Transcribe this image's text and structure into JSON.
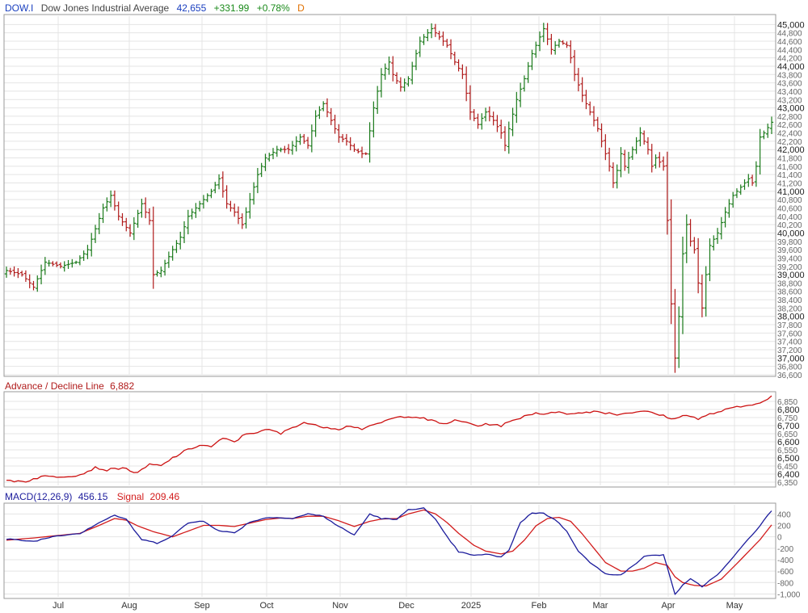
{
  "header": {
    "symbol": "DOW.I",
    "name": "Dow Jones Industrial Average",
    "last": "42,655",
    "change": "+331.99",
    "change_pct": "+0.78%",
    "period": "D"
  },
  "adl": {
    "label": "Advance / Decline Line",
    "value": "6,882"
  },
  "macd": {
    "label": "MACD(12,26,9)",
    "value": "456.15",
    "signal_label": "Signal",
    "signal_value": "209.46"
  },
  "colors": {
    "up": "#1a7a1a",
    "down": "#b01a1a",
    "adl_line": "#cc1111",
    "macd_line": "#1c1c9c",
    "signal_line": "#d21c1c",
    "symbol": "#1a3fbf",
    "last": "#1a3fbf",
    "change": "#1a8a1a",
    "period": "#e07000"
  },
  "chart_data": [
    {
      "type": "ohlc",
      "ylim": [
        36600,
        45200
      ],
      "y_ticks": [
        45000,
        44800,
        44600,
        44400,
        44200,
        44000,
        43800,
        43600,
        43400,
        43200,
        43000,
        42800,
        42600,
        42400,
        42200,
        42000,
        41800,
        41600,
        41400,
        41200,
        41000,
        40800,
        40600,
        40400,
        40200,
        40000,
        39800,
        39600,
        39400,
        39200,
        39000,
        38800,
        38600,
        38400,
        38200,
        38000,
        37800,
        37600,
        37400,
        37200,
        37000,
        36800,
        36600
      ],
      "y_tick_labels": [
        "45,000",
        "44,800",
        "44,600",
        "44,400",
        "44,200",
        "44,000",
        "43,800",
        "43,600",
        "43,400",
        "43,200",
        "43,000",
        "42,800",
        "42,600",
        "42,400",
        "42,200",
        "42,000",
        "41,800",
        "41,600",
        "41,400",
        "41,200",
        "41,000",
        "40,800",
        "40,600",
        "40,400",
        "40,200",
        "40,000",
        "39,800",
        "39,600",
        "39,400",
        "39,200",
        "39,000",
        "38,800",
        "38,600",
        "38,400",
        "38,200",
        "38,000",
        "37,800",
        "37,600",
        "37,400",
        "37,200",
        "37,000",
        "36,800",
        "36,600"
      ],
      "x_labels": [
        "Jul",
        "Aug",
        "Sep",
        "Oct",
        "Nov",
        "Dec",
        "2025",
        "Feb",
        "Mar",
        "Apr",
        "May"
      ],
      "anchors": [
        [
          0,
          39100
        ],
        [
          4,
          39000
        ],
        [
          7,
          38700
        ],
        [
          10,
          39300
        ],
        [
          14,
          39200
        ],
        [
          18,
          39300
        ],
        [
          21,
          39600
        ],
        [
          23,
          40100
        ],
        [
          25,
          40600
        ],
        [
          27,
          40900
        ],
        [
          29,
          40400
        ],
        [
          32,
          40000
        ],
        [
          35,
          40700
        ],
        [
          37,
          40300
        ],
        [
          38,
          39000
        ],
        [
          40,
          39100
        ],
        [
          43,
          39600
        ],
        [
          45,
          39900
        ],
        [
          47,
          40400
        ],
        [
          50,
          40700
        ],
        [
          53,
          41000
        ],
        [
          55,
          41300
        ],
        [
          57,
          40700
        ],
        [
          59,
          40500
        ],
        [
          61,
          40200
        ],
        [
          63,
          40800
        ],
        [
          65,
          41400
        ],
        [
          67,
          41800
        ],
        [
          70,
          42000
        ],
        [
          73,
          42000
        ],
        [
          76,
          42300
        ],
        [
          78,
          42100
        ],
        [
          80,
          42800
        ],
        [
          82,
          43100
        ],
        [
          84,
          42700
        ],
        [
          86,
          42300
        ],
        [
          88,
          42200
        ],
        [
          90,
          42000
        ],
        [
          92,
          41900
        ],
        [
          93,
          41900
        ],
        [
          95,
          43000
        ],
        [
          97,
          43800
        ],
        [
          99,
          44100
        ],
        [
          100,
          43800
        ],
        [
          102,
          43500
        ],
        [
          104,
          43700
        ],
        [
          105,
          44000
        ],
        [
          107,
          44600
        ],
        [
          110,
          44900
        ],
        [
          112,
          44700
        ],
        [
          114,
          44500
        ],
        [
          116,
          44100
        ],
        [
          118,
          43800
        ],
        [
          120,
          42900
        ],
        [
          122,
          42600
        ],
        [
          124,
          42900
        ],
        [
          126,
          42700
        ],
        [
          128,
          42400
        ],
        [
          129,
          42100
        ],
        [
          130,
          42500
        ],
        [
          132,
          43200
        ],
        [
          134,
          43700
        ],
        [
          136,
          44300
        ],
        [
          137,
          44500
        ],
        [
          139,
          44900
        ],
        [
          141,
          44400
        ],
        [
          143,
          44600
        ],
        [
          145,
          44500
        ],
        [
          146,
          44200
        ],
        [
          147,
          43800
        ],
        [
          149,
          43300
        ],
        [
          151,
          42900
        ],
        [
          153,
          42500
        ],
        [
          155,
          41900
        ],
        [
          156,
          41600
        ],
        [
          157,
          41200
        ],
        [
          158,
          41500
        ],
        [
          159,
          41900
        ],
        [
          160,
          41600
        ],
        [
          162,
          42000
        ],
        [
          164,
          42400
        ],
        [
          166,
          42000
        ],
        [
          167,
          41600
        ],
        [
          168,
          41800
        ],
        [
          170,
          41600
        ],
        [
          171,
          40300
        ],
        [
          172,
          38300
        ],
        [
          173,
          37000
        ],
        [
          174,
          38000
        ],
        [
          175,
          39500
        ],
        [
          176,
          40200
        ],
        [
          177,
          39800
        ],
        [
          178,
          39600
        ],
        [
          179,
          38800
        ],
        [
          180,
          38200
        ],
        [
          181,
          39000
        ],
        [
          182,
          39700
        ],
        [
          184,
          40000
        ],
        [
          186,
          40500
        ],
        [
          188,
          40900
        ],
        [
          190,
          41100
        ],
        [
          192,
          41300
        ],
        [
          193,
          41200
        ],
        [
          194,
          41600
        ],
        [
          195,
          42300
        ],
        [
          196,
          42400
        ],
        [
          198,
          42655
        ]
      ]
    },
    {
      "type": "line",
      "title": "Advance / Decline Line",
      "ylim": [
        6330,
        6900
      ],
      "y_ticks": [
        6850,
        6800,
        6750,
        6700,
        6650,
        6600,
        6550,
        6500,
        6450,
        6400,
        6350
      ],
      "y_tick_labels": [
        "6,850",
        "6,800",
        "6,750",
        "6,700",
        "6,650",
        "6,600",
        "6,550",
        "6,500",
        "6,450",
        "6,400",
        "6,350"
      ],
      "anchors": [
        [
          0,
          6360
        ],
        [
          5,
          6355
        ],
        [
          9,
          6385
        ],
        [
          14,
          6385
        ],
        [
          19,
          6395
        ],
        [
          23,
          6440
        ],
        [
          26,
          6425
        ],
        [
          30,
          6440
        ],
        [
          34,
          6405
        ],
        [
          37,
          6460
        ],
        [
          40,
          6450
        ],
        [
          43,
          6500
        ],
        [
          46,
          6540
        ],
        [
          50,
          6580
        ],
        [
          53,
          6570
        ],
        [
          56,
          6620
        ],
        [
          59,
          6600
        ],
        [
          62,
          6650
        ],
        [
          65,
          6660
        ],
        [
          68,
          6675
        ],
        [
          71,
          6650
        ],
        [
          74,
          6690
        ],
        [
          77,
          6720
        ],
        [
          80,
          6700
        ],
        [
          83,
          6690
        ],
        [
          86,
          6680
        ],
        [
          89,
          6700
        ],
        [
          92,
          6680
        ],
        [
          95,
          6700
        ],
        [
          98,
          6730
        ],
        [
          101,
          6750
        ],
        [
          104,
          6760
        ],
        [
          107,
          6750
        ],
        [
          110,
          6730
        ],
        [
          113,
          6710
        ],
        [
          116,
          6730
        ],
        [
          119,
          6720
        ],
        [
          122,
          6700
        ],
        [
          125,
          6710
        ],
        [
          128,
          6700
        ],
        [
          131,
          6730
        ],
        [
          134,
          6760
        ],
        [
          137,
          6780
        ],
        [
          140,
          6770
        ],
        [
          143,
          6790
        ],
        [
          146,
          6770
        ],
        [
          149,
          6780
        ],
        [
          152,
          6790
        ],
        [
          155,
          6780
        ],
        [
          158,
          6770
        ],
        [
          161,
          6780
        ],
        [
          164,
          6790
        ],
        [
          167,
          6780
        ],
        [
          170,
          6760
        ],
        [
          173,
          6740
        ],
        [
          176,
          6770
        ],
        [
          179,
          6740
        ],
        [
          182,
          6770
        ],
        [
          185,
          6790
        ],
        [
          188,
          6810
        ],
        [
          191,
          6820
        ],
        [
          194,
          6840
        ],
        [
          197,
          6860
        ],
        [
          198,
          6882
        ]
      ]
    },
    {
      "type": "line",
      "title": "MACD(12,26,9)",
      "ylim": [
        -1050,
        560
      ],
      "y_ticks": [
        400,
        200,
        0,
        -200,
        -400,
        -600,
        -800,
        -1000
      ],
      "y_tick_labels": [
        "400",
        "200",
        "0",
        "-200",
        "-400",
        "-600",
        "-800",
        "-1,000"
      ],
      "series": [
        {
          "name": "MACD(12,26,9)",
          "anchors": [
            [
              0,
              -40
            ],
            [
              7,
              -80
            ],
            [
              13,
              20
            ],
            [
              19,
              60
            ],
            [
              24,
              250
            ],
            [
              28,
              380
            ],
            [
              31,
              300
            ],
            [
              35,
              -50
            ],
            [
              39,
              -110
            ],
            [
              43,
              20
            ],
            [
              47,
              240
            ],
            [
              51,
              280
            ],
            [
              55,
              100
            ],
            [
              59,
              70
            ],
            [
              63,
              260
            ],
            [
              67,
              330
            ],
            [
              71,
              340
            ],
            [
              74,
              320
            ],
            [
              78,
              400
            ],
            [
              82,
              360
            ],
            [
              86,
              180
            ],
            [
              90,
              30
            ],
            [
              94,
              400
            ],
            [
              97,
              320
            ],
            [
              101,
              300
            ],
            [
              104,
              480
            ],
            [
              108,
              500
            ],
            [
              111,
              300
            ],
            [
              114,
              0
            ],
            [
              117,
              -260
            ],
            [
              121,
              -330
            ],
            [
              124,
              -300
            ],
            [
              128,
              -360
            ],
            [
              130,
              -230
            ],
            [
              133,
              250
            ],
            [
              136,
              420
            ],
            [
              139,
              410
            ],
            [
              142,
              300
            ],
            [
              145,
              100
            ],
            [
              148,
              -250
            ],
            [
              151,
              -450
            ],
            [
              155,
              -650
            ],
            [
              159,
              -660
            ],
            [
              162,
              -520
            ],
            [
              165,
              -340
            ],
            [
              167,
              -330
            ],
            [
              170,
              -310
            ],
            [
              173,
              -1000
            ],
            [
              175,
              -850
            ],
            [
              177,
              -740
            ],
            [
              180,
              -870
            ],
            [
              185,
              -600
            ],
            [
              190,
              -200
            ],
            [
              195,
              200
            ],
            [
              198,
              456
            ]
          ]
        },
        {
          "name": "Signal",
          "anchors": [
            [
              0,
              -60
            ],
            [
              7,
              -20
            ],
            [
              13,
              20
            ],
            [
              19,
              60
            ],
            [
              24,
              200
            ],
            [
              28,
              320
            ],
            [
              31,
              290
            ],
            [
              34,
              190
            ],
            [
              38,
              90
            ],
            [
              43,
              0
            ],
            [
              47,
              100
            ],
            [
              51,
              200
            ],
            [
              55,
              200
            ],
            [
              59,
              180
            ],
            [
              63,
              240
            ],
            [
              67,
              300
            ],
            [
              71,
              330
            ],
            [
              74,
              320
            ],
            [
              78,
              360
            ],
            [
              82,
              360
            ],
            [
              86,
              280
            ],
            [
              90,
              180
            ],
            [
              94,
              270
            ],
            [
              97,
              310
            ],
            [
              101,
              320
            ],
            [
              104,
              400
            ],
            [
              108,
              470
            ],
            [
              111,
              400
            ],
            [
              114,
              250
            ],
            [
              117,
              60
            ],
            [
              121,
              -150
            ],
            [
              124,
              -250
            ],
            [
              128,
              -300
            ],
            [
              131,
              -250
            ],
            [
              134,
              -60
            ],
            [
              137,
              190
            ],
            [
              140,
              320
            ],
            [
              143,
              340
            ],
            [
              146,
              270
            ],
            [
              149,
              50
            ],
            [
              152,
              -200
            ],
            [
              155,
              -450
            ],
            [
              159,
              -600
            ],
            [
              162,
              -600
            ],
            [
              165,
              -550
            ],
            [
              168,
              -450
            ],
            [
              171,
              -500
            ],
            [
              173,
              -700
            ],
            [
              175,
              -800
            ],
            [
              178,
              -850
            ],
            [
              181,
              -860
            ],
            [
              185,
              -740
            ],
            [
              190,
              -400
            ],
            [
              195,
              -50
            ],
            [
              198,
              209
            ]
          ]
        }
      ]
    }
  ]
}
